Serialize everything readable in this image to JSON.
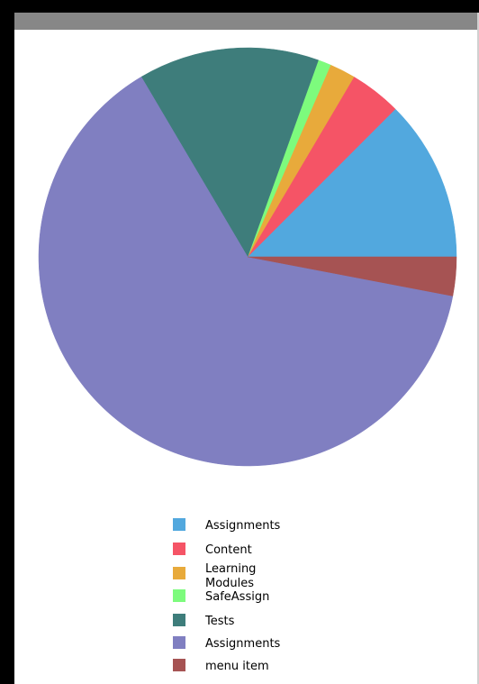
{
  "chart_data": {
    "type": "pie",
    "title": "",
    "start_angle_deg": 0,
    "direction": "counterclockwise",
    "slices": [
      {
        "label": "Assignments",
        "value": 12.5,
        "color": "#52a8de"
      },
      {
        "label": "Content",
        "value": 4.0,
        "color": "#f55466"
      },
      {
        "label": "Learning Modules",
        "value": 2.0,
        "color": "#e8aa3b"
      },
      {
        "label": "SafeAssign",
        "value": 1.0,
        "color": "#7dfb7d"
      },
      {
        "label": "Tests",
        "value": 14.0,
        "color": "#3e7d7b"
      },
      {
        "label": "Assignments",
        "value": 63.5,
        "color": "#807fc1"
      },
      {
        "label": "menu item",
        "value": 3.0,
        "color": "#a65353"
      }
    ],
    "legend_position": "bottom-center",
    "grid": false
  }
}
